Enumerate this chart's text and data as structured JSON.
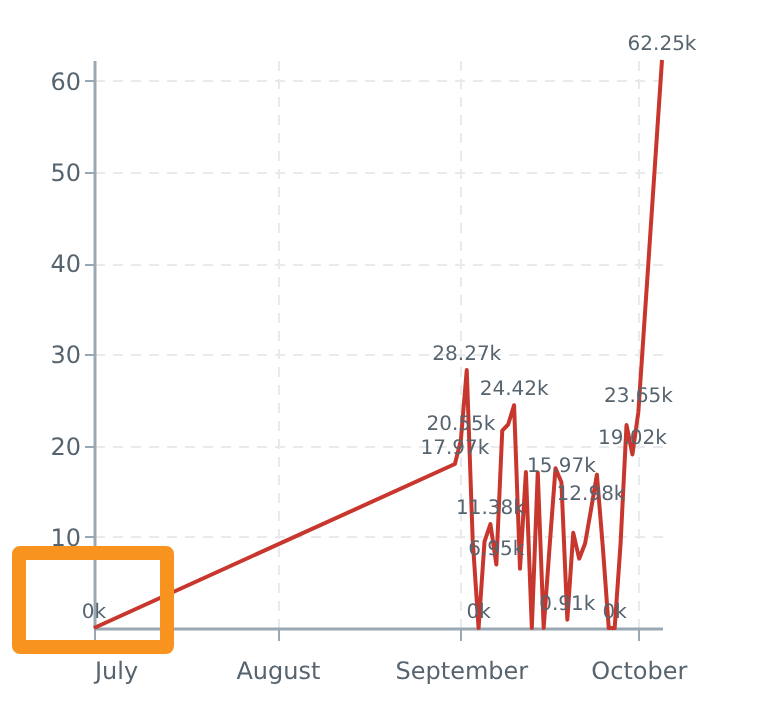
{
  "chart_data": {
    "type": "line",
    "x": [
      "--07-01",
      "--08-31",
      "--09-01",
      "--09-02",
      "--09-03",
      "--09-04",
      "--09-05",
      "--09-06",
      "--09-07",
      "--09-08",
      "--09-09",
      "--09-10",
      "--09-11",
      "--09-12",
      "--09-13",
      "--09-14",
      "--09-15",
      "--09-16",
      "--09-17",
      "--09-18",
      "--09-19",
      "--09-20",
      "--09-21",
      "--09-22",
      "--09-23",
      "--09-24",
      "--09-25",
      "--09-26",
      "--09-27",
      "--09-28",
      "--09-29",
      "--09-30",
      "--10-01",
      "--10-05"
    ],
    "series": [
      {
        "color": "#c8372d",
        "values": [
          0,
          17.97,
          20.55,
          28.27,
          9.74,
          0,
          9.46,
          11.38,
          6.95,
          21.64,
          22.3,
          24.42,
          6.5,
          17.1,
          0,
          17.05,
          0,
          8.9,
          17.5,
          15.97,
          0.91,
          10.43,
          7.6,
          9.26,
          12.98,
          16.81,
          8.85,
          0,
          0,
          9.26,
          22.25,
          19.02,
          23.65,
          62.25
        ],
        "value_labels": [
          "0k",
          "17.97k",
          "20.55k",
          "28.27k",
          null,
          "0k",
          null,
          "11.38k",
          "6.95k",
          null,
          null,
          "24.42k",
          null,
          null,
          null,
          null,
          null,
          null,
          null,
          "15.97k",
          "0.91k",
          null,
          null,
          null,
          "12.98k",
          null,
          null,
          null,
          "0k",
          null,
          null,
          "19.02k",
          "23.65k",
          "62.25k"
        ]
      }
    ],
    "xlim": [
      "--07-01",
      "--10-05"
    ],
    "xticks": [
      {
        "value": "--07-01",
        "label": "July"
      },
      {
        "value": "--08-01",
        "label": "August"
      },
      {
        "value": "--09-01",
        "label": "September"
      },
      {
        "value": "--10-01",
        "label": "October"
      }
    ],
    "ylim": [
      0,
      62.25
    ],
    "yticks": [
      10,
      20,
      30,
      40,
      50,
      60
    ],
    "grid": true,
    "marker": "none",
    "line_style": "solid"
  }
}
